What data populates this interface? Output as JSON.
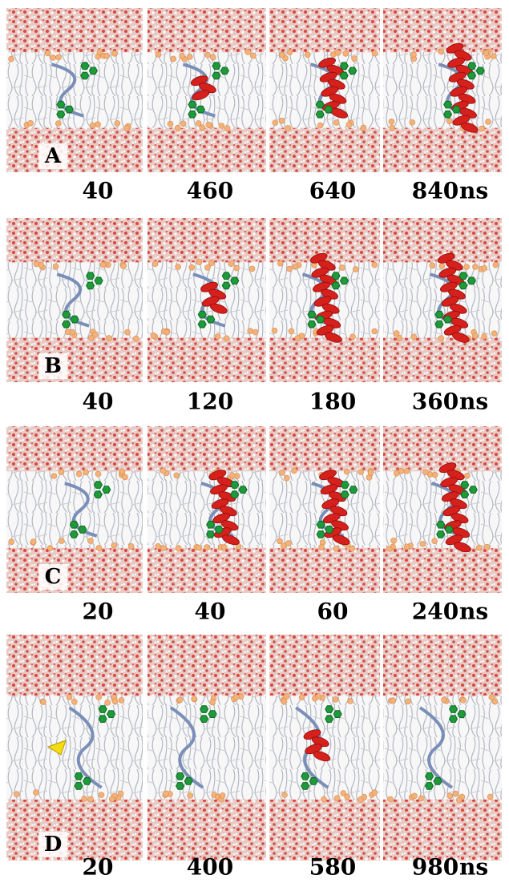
{
  "panels": [
    {
      "label": "A",
      "times": [
        "40",
        "460",
        "640",
        "840"
      ],
      "unit": "ns"
    },
    {
      "label": "B",
      "times": [
        "40",
        "120",
        "180",
        "360"
      ],
      "unit": "ns"
    },
    {
      "label": "C",
      "times": [
        "20",
        "40",
        "60",
        "240"
      ],
      "unit": "ns"
    },
    {
      "label": "D",
      "times": [
        "20",
        "400",
        "580",
        "980"
      ],
      "unit": "ns"
    }
  ]
}
